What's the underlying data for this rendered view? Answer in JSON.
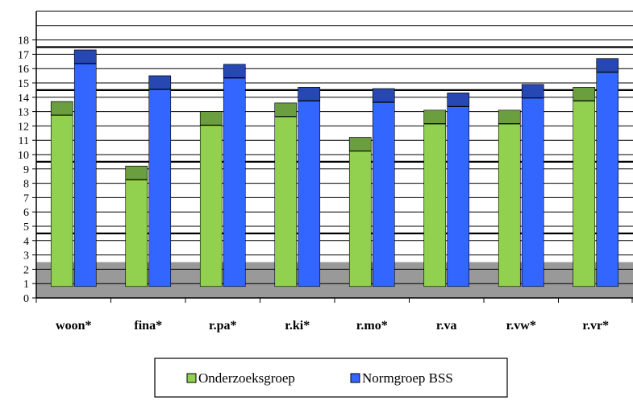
{
  "chart_data": {
    "type": "bar",
    "categories": [
      "woon*",
      "fina*",
      "r.pa*",
      "r.ki*",
      "r.mo*",
      "r.va",
      "r.vw*",
      "r.vr*"
    ],
    "series": [
      {
        "name": "Onderzoeksgroep",
        "values": [
          13.7,
          9.2,
          13.0,
          13.6,
          11.2,
          13.1,
          13.1,
          14.7
        ],
        "color": "#92d050",
        "cap_color": "#6a9e3f"
      },
      {
        "name": "Normgroep BSS",
        "values": [
          17.3,
          15.5,
          16.3,
          14.7,
          14.6,
          14.3,
          14.9,
          16.7
        ],
        "color": "#3366ff",
        "cap_color": "#2747b3"
      }
    ],
    "bar_base": 0.8,
    "cap_size": 0.95,
    "yticks": [
      "0",
      "1",
      "2",
      "3",
      "4",
      "5",
      "6",
      "7",
      "8",
      "9",
      "10",
      "11",
      "12",
      "13",
      "14",
      "15",
      "16",
      "17",
      "18"
    ],
    "ylim": [
      0,
      20
    ],
    "shaded_band": {
      "from": 0,
      "to": 2.5,
      "color": "#999999"
    },
    "bold_gridlines": [
      4.5,
      9.5,
      14.5,
      17.5
    ],
    "grid": true,
    "legend_position": "bottom-center",
    "title": "",
    "xlabel": "",
    "ylabel": ""
  }
}
